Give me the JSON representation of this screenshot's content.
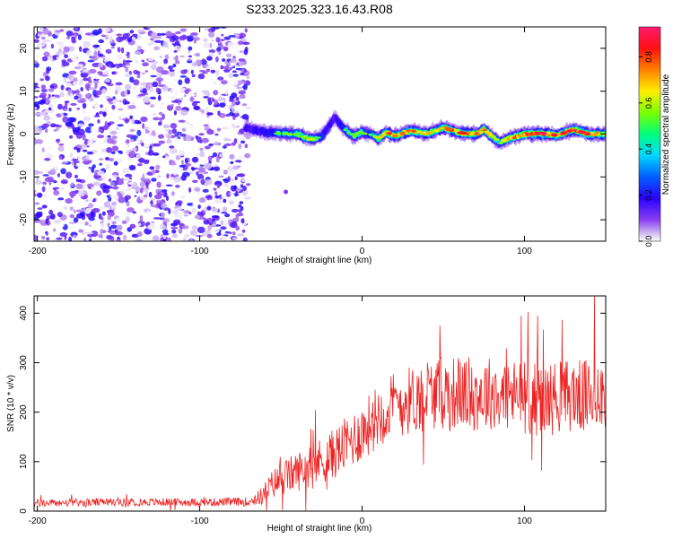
{
  "title": "S233.2025.323.16.43.R08",
  "chart_data": [
    {
      "type": "heatmap",
      "xlabel": "Height of straight line (km)",
      "ylabel": "Frequency (Hz)",
      "xlim": [
        -202,
        150
      ],
      "ylim": [
        -25,
        25
      ],
      "xticks": [
        -200,
        -100,
        0,
        100
      ],
      "yticks": [
        -20,
        -10,
        0,
        10,
        20
      ],
      "colorbar": {
        "label": "Normalized spectral amplitude",
        "range": [
          0,
          0.93
        ],
        "ticks": [
          0.0,
          0.2,
          0.4,
          0.6,
          0.8
        ],
        "tick_labels": [
          "0.0",
          "0.2",
          "0.4",
          "0.6",
          "0.8"
        ]
      },
      "noise_region_x": [
        -202,
        -70
      ],
      "ridge": {
        "x": [
          -72,
          -60,
          -50,
          -40,
          -35,
          -30,
          -25,
          -20,
          -17,
          -12,
          -5,
          0,
          5,
          10,
          15,
          20,
          30,
          40,
          50,
          60,
          70,
          75,
          80,
          85,
          90,
          100,
          110,
          120,
          130,
          140,
          150
        ],
        "f": [
          1.5,
          0.5,
          0.2,
          0.0,
          -0.8,
          -1.2,
          -0.5,
          2.0,
          4.0,
          1.5,
          -0.5,
          0.5,
          0.0,
          -1.0,
          0.5,
          -0.5,
          0.8,
          0.0,
          1.5,
          0.3,
          0.0,
          1.0,
          -0.5,
          -2.0,
          -1.0,
          0.0,
          0.2,
          -0.3,
          1.0,
          0.0,
          0.0
        ],
        "amp": [
          0.35,
          0.45,
          0.55,
          0.6,
          0.7,
          0.65,
          0.5,
          0.45,
          0.35,
          0.5,
          0.65,
          0.6,
          0.55,
          0.7,
          0.85,
          0.75,
          0.8,
          0.7,
          0.75,
          0.85,
          0.8,
          0.9,
          0.75,
          0.6,
          0.8,
          0.9,
          0.92,
          0.85,
          0.9,
          0.88,
          0.7
        ]
      }
    },
    {
      "type": "line",
      "xlabel": "Height of straight line (km)",
      "ylabel": "SNR (10 * v/v)",
      "xlim": [
        -202,
        150
      ],
      "ylim": [
        0,
        435
      ],
      "xticks": [
        -200,
        -100,
        0,
        100
      ],
      "yticks": [
        0,
        100,
        200,
        300,
        400
      ],
      "series": [
        {
          "name": "SNR",
          "color": "#ee2222",
          "x": [
            -202,
            -150,
            -100,
            -70,
            -62,
            -55,
            -50,
            -40,
            -30,
            -20,
            -10,
            0,
            10,
            20,
            30,
            40,
            50,
            60,
            70,
            80,
            90,
            100,
            110,
            120,
            130,
            140,
            150
          ],
          "mean": [
            16,
            18,
            18,
            19,
            30,
            55,
            65,
            80,
            95,
            110,
            135,
            160,
            195,
            215,
            225,
            235,
            240,
            240,
            235,
            240,
            235,
            230,
            225,
            230,
            235,
            230,
            240
          ],
          "spread": [
            8,
            8,
            8,
            9,
            18,
            30,
            35,
            40,
            45,
            50,
            55,
            60,
            65,
            70,
            70,
            70,
            75,
            75,
            75,
            75,
            75,
            75,
            75,
            75,
            75,
            75,
            75
          ],
          "notable_peaks": [
            {
              "x": 143,
              "y": 435
            },
            {
              "x": 108,
              "y": 395
            },
            {
              "x": 98,
              "y": 395
            },
            {
              "x": 48,
              "y": 375
            }
          ]
        }
      ]
    }
  ]
}
